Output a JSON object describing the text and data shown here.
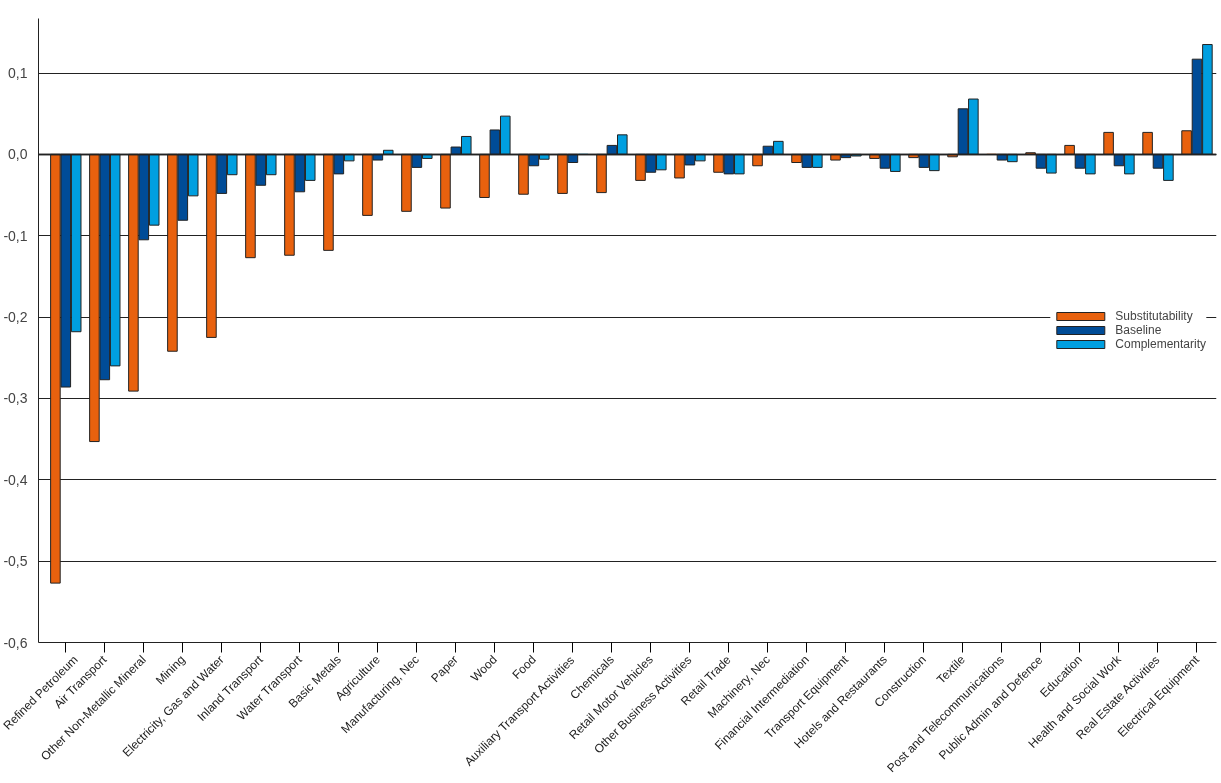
{
  "chart_data": {
    "type": "bar",
    "categories": [
      "Refined Petroleum",
      "Air Transport",
      "Other Non-Metallic Mineral",
      "Mining",
      "Electricity, Gas and Water",
      "Inland Transport",
      "Water Transport",
      "Basic Metals",
      "Agriculture",
      "Manufacturing, Nec",
      "Paper",
      "Wood",
      "Food",
      "Auxiliary Transport Activities",
      "Chemicals",
      "Retail Motor Vehicles",
      "Other Business Activities",
      "Retail Trade",
      "Machinery, Nec",
      "Financial Intermediation",
      "Transport Equipment",
      "Hotels and Restaurants",
      "Construction",
      "Textile",
      "Post and Telecommunications",
      "Public Admin and Defence",
      "Education",
      "Health and Social Work",
      "Real Estate Activities",
      "Electrical Equipment"
    ],
    "series": [
      {
        "name": "Substitutability",
        "color": "#e8610e",
        "values": [
          -0.527,
          -0.353,
          -0.291,
          -0.242,
          -0.225,
          -0.127,
          -0.124,
          -0.118,
          -0.075,
          -0.07,
          -0.066,
          -0.053,
          -0.049,
          -0.048,
          -0.047,
          -0.032,
          -0.029,
          -0.022,
          -0.014,
          -0.01,
          -0.007,
          -0.005,
          -0.004,
          -0.003,
          0,
          0.002,
          0.011,
          0.027,
          0.027,
          0.029
        ]
      },
      {
        "name": "Baseline",
        "color": "#004c97",
        "values": [
          -0.286,
          -0.277,
          -0.105,
          -0.081,
          -0.048,
          -0.038,
          -0.046,
          -0.024,
          -0.007,
          -0.016,
          0.009,
          0.03,
          -0.014,
          -0.01,
          0.011,
          -0.022,
          -0.013,
          -0.024,
          0.01,
          -0.016,
          -0.004,
          -0.017,
          -0.016,
          0.056,
          -0.007,
          -0.017,
          -0.017,
          -0.014,
          -0.017,
          0.117
        ]
      },
      {
        "name": "Complementarity",
        "color": "#009fe0",
        "values": [
          -0.218,
          -0.26,
          -0.087,
          -0.051,
          -0.025,
          -0.025,
          -0.032,
          -0.008,
          0.005,
          -0.005,
          0.022,
          0.047,
          -0.006,
          0,
          0.024,
          -0.019,
          -0.008,
          -0.024,
          0.016,
          -0.016,
          -0.002,
          -0.021,
          -0.02,
          0.068,
          -0.009,
          -0.023,
          -0.024,
          -0.024,
          -0.032,
          0.135
        ]
      }
    ],
    "ylim": [
      -0.6,
      0.167
    ],
    "yticks": [
      {
        "value": -0.6,
        "label": "-0,6"
      },
      {
        "value": -0.5,
        "label": "-0,5"
      },
      {
        "value": -0.4,
        "label": "-0,4"
      },
      {
        "value": -0.3,
        "label": "-0,3"
      },
      {
        "value": -0.2,
        "label": "-0,2"
      },
      {
        "value": -0.1,
        "label": "-0,1"
      },
      {
        "value": 0,
        "label": "0,0"
      },
      {
        "value": 0.1,
        "label": "0,1"
      }
    ],
    "grid": "y",
    "legend": "right"
  }
}
